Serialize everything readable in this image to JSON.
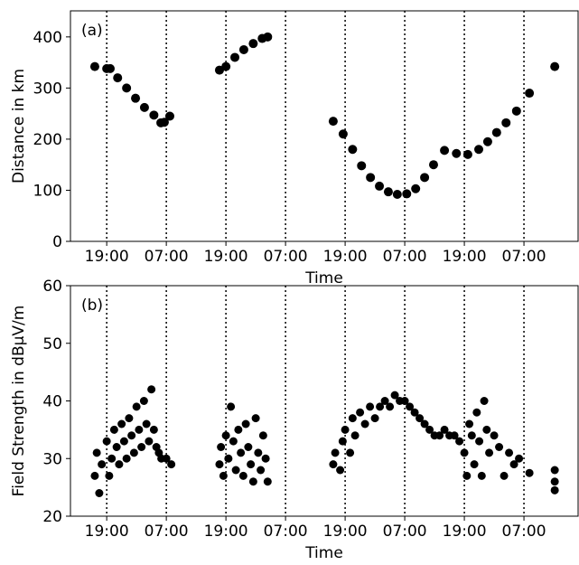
{
  "chart_data": [
    {
      "type": "scatter",
      "annotation": "(a)",
      "x_label": "Time",
      "y_label": "Distance in km",
      "xlim": [
        -7.3,
        94.9
      ],
      "ylim": [
        0,
        451
      ],
      "xticks": [
        {
          "value": 0,
          "label": "19:00"
        },
        {
          "value": 12,
          "label": "07:00"
        },
        {
          "value": 24,
          "label": "19:00"
        },
        {
          "value": 36,
          "label": "07:00"
        },
        {
          "value": 48,
          "label": "19:00"
        },
        {
          "value": 60,
          "label": "07:00"
        },
        {
          "value": 72,
          "label": "19:00"
        },
        {
          "value": 84,
          "label": "07:00"
        }
      ],
      "yticks": [
        0,
        100,
        200,
        300,
        400
      ],
      "x_grid": true,
      "color": "#000000",
      "x": [
        -2.4,
        0,
        0.7,
        2.2,
        4,
        5.8,
        7.6,
        9.5,
        10.9,
        11.6,
        12.7,
        22.7,
        24,
        25.8,
        27.6,
        29.5,
        31.3,
        32.4,
        45.6,
        47.6,
        49.5,
        51.3,
        53.1,
        54.9,
        56.7,
        58.5,
        60.4,
        62.2,
        64,
        65.8,
        68,
        70.4,
        72.7,
        74.9,
        76.7,
        78.5,
        80.4,
        82.5,
        85.1,
        90.2
      ],
      "values": [
        342,
        338,
        338,
        320,
        300,
        280,
        262,
        247,
        232,
        233,
        245,
        335,
        342,
        360,
        375,
        387,
        397,
        400,
        235,
        210,
        180,
        148,
        125,
        108,
        97,
        92,
        93,
        103,
        125,
        150,
        178,
        172,
        170,
        180,
        195,
        213,
        232,
        255,
        290,
        342
      ]
    },
    {
      "type": "scatter",
      "annotation": "(b)",
      "x_label": "Time",
      "y_label": "Field Strength in dBµV/m",
      "xlim": [
        -7.3,
        94.9
      ],
      "ylim": [
        20,
        60
      ],
      "xticks": [
        {
          "value": 0,
          "label": "19:00"
        },
        {
          "value": 12,
          "label": "07:00"
        },
        {
          "value": 24,
          "label": "19:00"
        },
        {
          "value": 36,
          "label": "07:00"
        },
        {
          "value": 48,
          "label": "19:00"
        },
        {
          "value": 60,
          "label": "07:00"
        },
        {
          "value": 72,
          "label": "19:00"
        },
        {
          "value": 84,
          "label": "07:00"
        }
      ],
      "yticks": [
        20,
        30,
        40,
        50,
        60
      ],
      "x_grid": true,
      "color": "#000000",
      "x": [
        -2.4,
        -2,
        -1.5,
        -1,
        0,
        0.5,
        1,
        1.5,
        2,
        2.5,
        3,
        3.5,
        4,
        4.5,
        5,
        5.5,
        6,
        6.5,
        7,
        7.5,
        8,
        8.5,
        9,
        9.5,
        10,
        10.5,
        11,
        12,
        13,
        22.7,
        23,
        23.5,
        24,
        24.5,
        25,
        25.5,
        26,
        26.5,
        27,
        27.5,
        28,
        28.5,
        29,
        29.5,
        30,
        30.5,
        31,
        31.5,
        32,
        32.4,
        45.6,
        46,
        47,
        47.5,
        48,
        49,
        49.5,
        50,
        51,
        52,
        53,
        54,
        55,
        56,
        57,
        58,
        59,
        60,
        61,
        62,
        63,
        64,
        65,
        66,
        67,
        68,
        69,
        70,
        71,
        72,
        72.5,
        73,
        73.5,
        74,
        74.5,
        75,
        75.5,
        76,
        76.5,
        77,
        78,
        79,
        80,
        81,
        82,
        83,
        85.1,
        90.2,
        90.2,
        90.2
      ],
      "values": [
        27,
        31,
        24,
        29,
        33,
        27,
        30,
        35,
        32,
        29,
        36,
        33,
        30,
        37,
        34,
        31,
        39,
        35,
        32,
        40,
        36,
        33,
        42,
        35,
        32,
        31,
        30,
        30,
        29,
        29,
        32,
        27,
        34,
        30,
        39,
        33,
        28,
        35,
        31,
        27,
        36,
        32,
        29,
        26,
        37,
        31,
        28,
        34,
        30,
        26,
        29,
        31,
        28,
        33,
        35,
        31,
        37,
        34,
        38,
        36,
        39,
        37,
        39,
        40,
        39,
        41,
        40,
        40,
        39,
        38,
        37,
        36,
        35,
        34,
        34,
        35,
        34,
        34,
        33,
        31,
        27,
        36,
        34,
        29,
        38,
        33,
        27,
        40,
        35,
        31,
        34,
        32,
        27,
        31,
        29,
        30,
        27.5,
        28,
        26,
        24.5
      ]
    }
  ]
}
